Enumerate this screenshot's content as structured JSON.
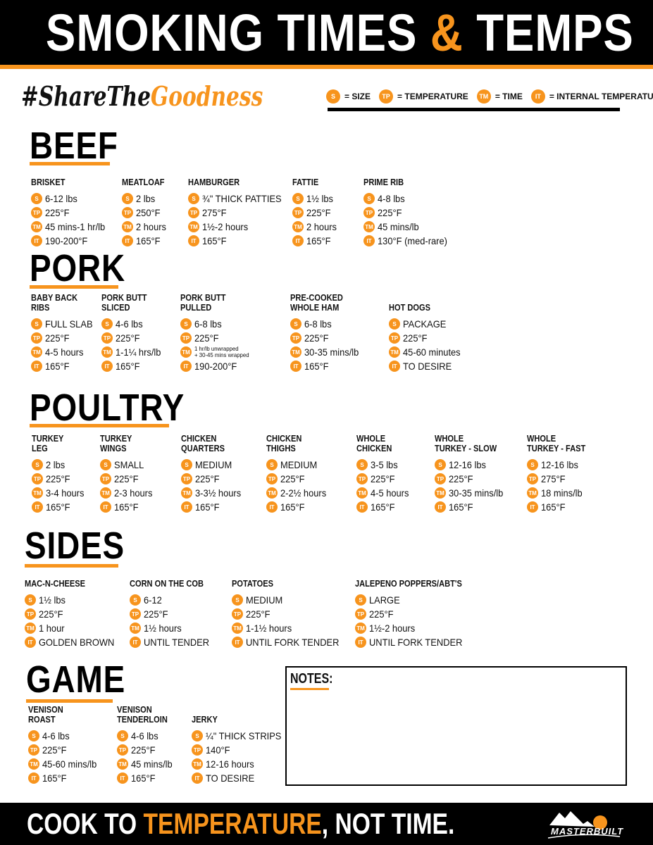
{
  "header": {
    "title_part1": "SMOKING TIMES ",
    "title_amp": "&",
    "title_part2": " TEMPS"
  },
  "hashtag": {
    "part1": "#ShareThe",
    "part2": "Goodness"
  },
  "legend": [
    {
      "icon": "S",
      "label": "= SIZE"
    },
    {
      "icon": "TP",
      "label": "= TEMPERATURE"
    },
    {
      "icon": "TM",
      "label": "= TIME"
    },
    {
      "icon": "IT",
      "label": "= INTERNAL TEMPERATURE"
    }
  ],
  "colors": {
    "accent": "#f7941d",
    "dark": "#000000"
  },
  "sections": [
    {
      "title": "BEEF",
      "items": [
        {
          "name": [
            "BRISKET"
          ],
          "values": [
            "6-12 lbs",
            "225°F",
            "45 mins-1 hr/lb",
            "190-200°F"
          ]
        },
        {
          "name": [
            "MEATLOAF"
          ],
          "values": [
            "2 lbs",
            "250°F",
            "2 hours",
            "165°F"
          ]
        },
        {
          "name": [
            "HAMBURGER"
          ],
          "values": [
            "¾\" THICK PATTIES",
            "275°F",
            "1½-2 hours",
            "165°F"
          ]
        },
        {
          "name": [
            "FATTIE"
          ],
          "values": [
            "1½ lbs",
            "225°F",
            "2 hours",
            "165°F"
          ]
        },
        {
          "name": [
            "PRIME RIB"
          ],
          "values": [
            "4-8 lbs",
            "225°F",
            "45 mins/lb",
            "130°F (med-rare)"
          ]
        }
      ]
    },
    {
      "title": "PORK",
      "items": [
        {
          "name": [
            "BABY BACK",
            "RIBS"
          ],
          "values": [
            "FULL SLAB",
            "225°F",
            "4-5 hours",
            "165°F"
          ]
        },
        {
          "name": [
            "PORK BUTT",
            "SLICED"
          ],
          "values": [
            "4-6 lbs",
            "225°F",
            "1-1¼ hrs/lb",
            "165°F"
          ]
        },
        {
          "name": [
            "PORK BUTT",
            "PULLED"
          ],
          "values": [
            "6-8 lbs",
            "225°F",
            "1 hr/lb unwrapped\n+ 30-45 mins wrapped",
            "190-200°F"
          ]
        },
        {
          "name": [
            "PRE-COOKED",
            "WHOLE HAM"
          ],
          "values": [
            "6-8 lbs",
            "225°F",
            "30-35 mins/lb",
            "165°F"
          ]
        },
        {
          "name": [
            "HOT DOGS"
          ],
          "values": [
            "PACKAGE",
            "225°F",
            "45-60 minutes",
            "TO DESIRE"
          ]
        }
      ]
    },
    {
      "title": "POULTRY",
      "items": [
        {
          "name": [
            "TURKEY",
            "LEG"
          ],
          "values": [
            "2 lbs",
            "225°F",
            "3-4 hours",
            "165°F"
          ]
        },
        {
          "name": [
            "TURKEY",
            "WINGS"
          ],
          "values": [
            "SMALL",
            "225°F",
            "2-3 hours",
            "165°F"
          ]
        },
        {
          "name": [
            "CHICKEN",
            "QUARTERS"
          ],
          "values": [
            "MEDIUM",
            "225°F",
            "3-3½ hours",
            "165°F"
          ]
        },
        {
          "name": [
            "CHICKEN",
            "THIGHS"
          ],
          "values": [
            "MEDIUM",
            "225°F",
            "2-2½ hours",
            "165°F"
          ]
        },
        {
          "name": [
            "WHOLE",
            "CHICKEN"
          ],
          "values": [
            "3-5 lbs",
            "225°F",
            "4-5 hours",
            "165°F"
          ]
        },
        {
          "name": [
            "WHOLE",
            "TURKEY - SLOW"
          ],
          "values": [
            "12-16 lbs",
            "225°F",
            "30-35 mins/lb",
            "165°F"
          ]
        },
        {
          "name": [
            "WHOLE",
            "TURKEY - FAST"
          ],
          "values": [
            "12-16 lbs",
            "275°F",
            "18 mins/lb",
            "165°F"
          ]
        }
      ]
    },
    {
      "title": "SIDES",
      "items": [
        {
          "name": [
            "MAC-N-CHEESE"
          ],
          "values": [
            "1½ lbs",
            "225°F",
            "1 hour",
            "GOLDEN BROWN"
          ]
        },
        {
          "name": [
            "CORN ON THE COB"
          ],
          "values": [
            "6-12",
            "225°F",
            "1½ hours",
            "UNTIL TENDER"
          ]
        },
        {
          "name": [
            "POTATOES"
          ],
          "values": [
            "MEDIUM",
            "225°F",
            "1-1½ hours",
            "UNTIL FORK TENDER"
          ]
        },
        {
          "name": [
            "JALEPENO POPPERS/ABT'S"
          ],
          "values": [
            "LARGE",
            "225°F",
            "1½-2 hours",
            "UNTIL FORK TENDER"
          ]
        }
      ]
    },
    {
      "title": "GAME",
      "items": [
        {
          "name": [
            "VENISON",
            "ROAST"
          ],
          "values": [
            "4-6 lbs",
            "225°F",
            "45-60 mins/lb",
            "165°F"
          ]
        },
        {
          "name": [
            "VENISON",
            "TENDERLOIN"
          ],
          "values": [
            "4-6 lbs",
            "225°F",
            "45 mins/lb",
            "165°F"
          ]
        },
        {
          "name": [
            "JERKY"
          ],
          "values": [
            "¼\" THICK STRIPS",
            "140°F",
            "12-16 hours",
            "TO DESIRE"
          ]
        }
      ]
    }
  ],
  "notes": {
    "label": "NOTES:"
  },
  "footer": {
    "part1": "COOK TO ",
    "part2": "TEMPERATURE",
    "part3": ", NOT TIME.",
    "logo": "MASTERBUILT"
  }
}
